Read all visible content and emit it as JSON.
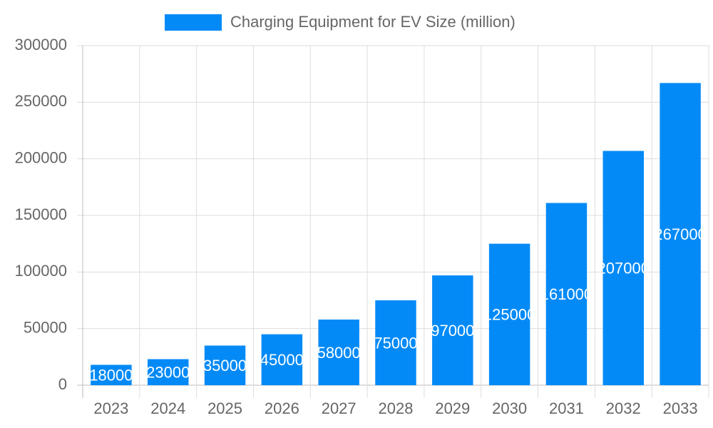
{
  "chart_data": {
    "type": "bar",
    "categories": [
      "2023",
      "2024",
      "2025",
      "2026",
      "2027",
      "2028",
      "2029",
      "2030",
      "2031",
      "2032",
      "2033"
    ],
    "series": [
      {
        "name": "Charging Equipment for EV Size (million)",
        "color": "#038af7",
        "values": [
          18000,
          23000,
          35000,
          45000,
          58000,
          75000,
          97000,
          125000,
          161000,
          207000,
          267000
        ]
      }
    ],
    "ylim": [
      0,
      300000
    ],
    "yticks": [
      0,
      50000,
      100000,
      150000,
      200000,
      250000,
      300000
    ],
    "grid": true,
    "legend": "top",
    "data_labels": true
  }
}
